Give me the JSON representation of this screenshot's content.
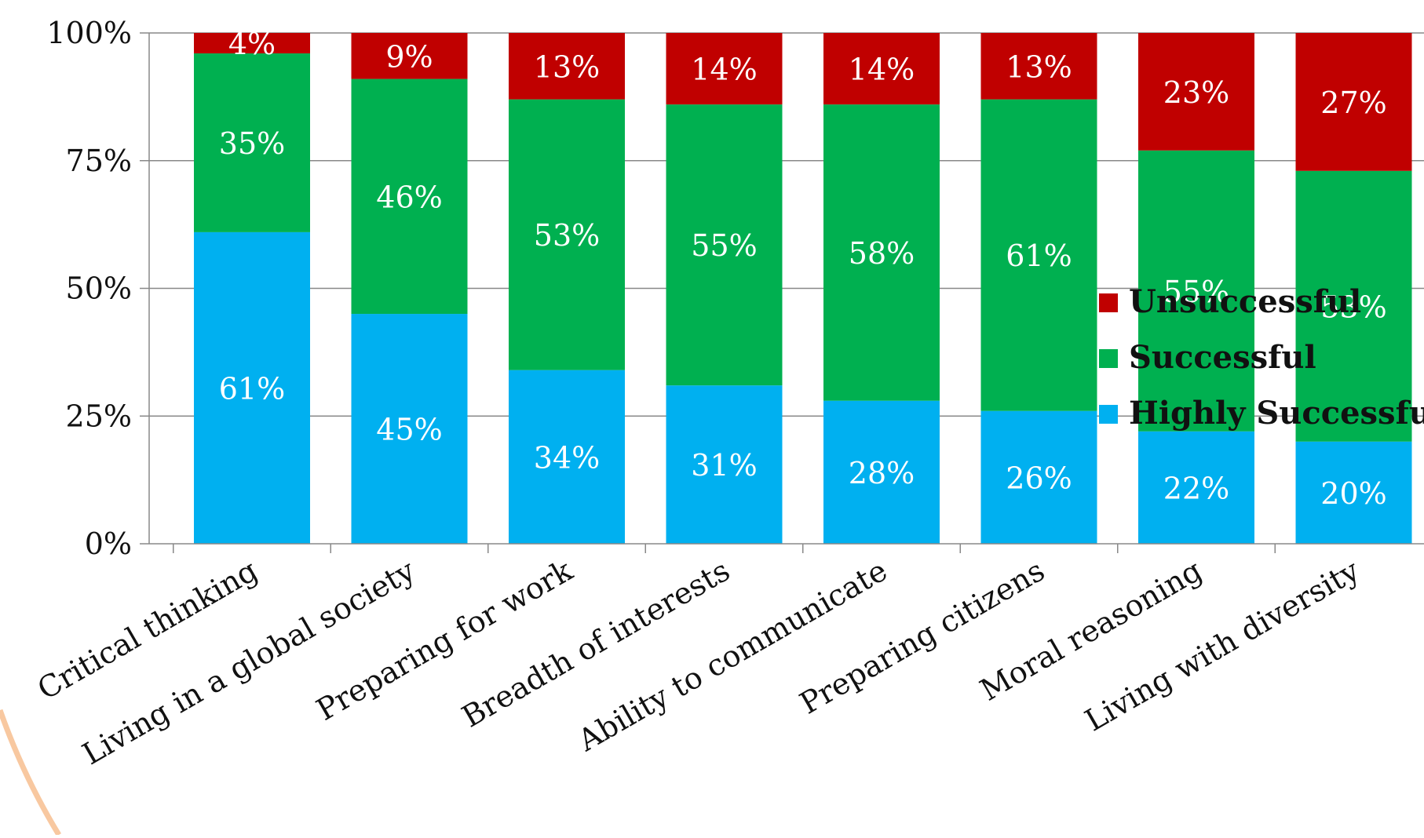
{
  "chart_data": {
    "type": "bar",
    "stacked": true,
    "percent": true,
    "categories": [
      "Critical thinking",
      "Living in a global society",
      "Preparing for work",
      "Breadth of interests",
      "Ability to communicate",
      "Preparing citizens",
      "Moral reasoning",
      "Living with diversity"
    ],
    "series": [
      {
        "name": "Highly Successful",
        "color": "#00B0F0",
        "values": [
          61,
          45,
          34,
          31,
          28,
          26,
          22,
          20
        ],
        "labels": [
          "61%",
          "45%",
          "34%",
          "31%",
          "28%",
          "26%",
          "22%",
          "20%"
        ]
      },
      {
        "name": "Successful",
        "color": "#00B050",
        "values": [
          35,
          46,
          53,
          55,
          58,
          61,
          55,
          53
        ],
        "labels": [
          "35%",
          "46%",
          "53%",
          "55%",
          "58%",
          "61%",
          "55%",
          "53%"
        ]
      },
      {
        "name": "Unsuccessful",
        "color": "#C00000",
        "values": [
          4,
          9,
          13,
          14,
          14,
          13,
          23,
          27
        ],
        "labels": [
          "4%",
          "9%",
          "13%",
          "14%",
          "14%",
          "13%",
          "23%",
          "27%"
        ]
      }
    ],
    "yticks": [
      "0%",
      "25%",
      "50%",
      "75%",
      "100%"
    ],
    "ylim": [
      0,
      100
    ],
    "legend_order": [
      "Unsuccessful",
      "Successful",
      "Highly Successful"
    ],
    "legend_position": "right",
    "grid": true
  }
}
